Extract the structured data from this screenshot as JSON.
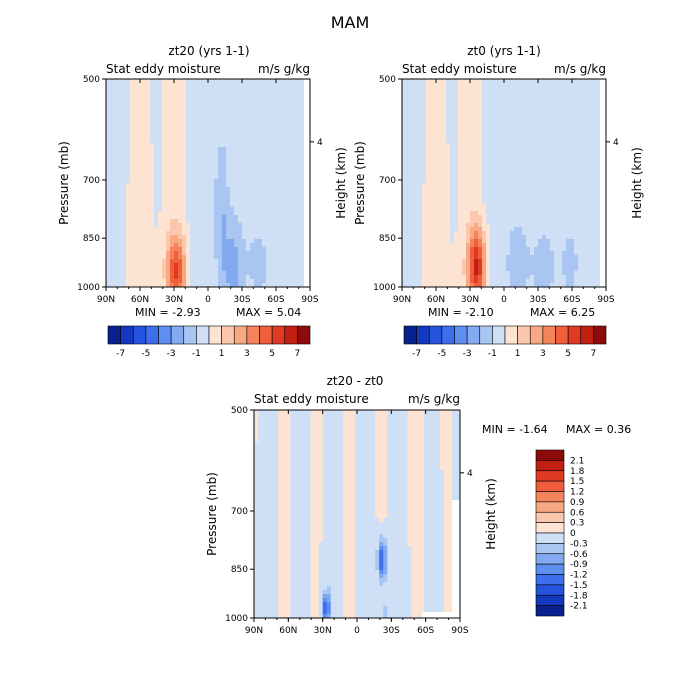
{
  "figure_title": "MAM",
  "palette": {
    "neg": [
      "#08218f",
      "#1438bf",
      "#2553de",
      "#3c6eee",
      "#5d8ef2",
      "#83aaf1",
      "#a9c5f1",
      "#cfe0f6"
    ],
    "pos": [
      "#fde4d2",
      "#fbc8ad",
      "#f8a882",
      "#f5835c",
      "#f05e3b",
      "#e03a22",
      "#c21f13",
      "#8e0b0b"
    ]
  },
  "chart_data": [
    {
      "type": "heatmap",
      "title": "zt20 (yrs 1-1)",
      "subtitle_left": "Stat eddy moisture",
      "subtitle_right": "m/s g/kg",
      "ylabel": "Pressure (mb)",
      "ylabel_right": "Height (km)",
      "x_ticks": [
        "90N",
        "60N",
        "30N",
        "0",
        "30S",
        "60S",
        "90S"
      ],
      "y_ticks": [
        "500",
        "700",
        "850",
        "1000"
      ],
      "y_right_ticks": [
        "4"
      ],
      "ylim": [
        1000,
        500
      ],
      "min_text": "MIN =   -2.93",
      "max_text": "MAX =    5.04",
      "levels": [
        -7,
        -6,
        -5,
        -4,
        -3,
        -2,
        -1,
        0,
        1,
        2,
        3,
        4,
        5,
        6,
        7
      ]
    },
    {
      "type": "heatmap",
      "title": "zt0 (yrs 1-1)",
      "subtitle_left": "Stat eddy moisture",
      "subtitle_right": "m/s g/kg",
      "ylabel": "Pressure (mb)",
      "ylabel_right": "Height (km)",
      "x_ticks": [
        "90N",
        "60N",
        "30N",
        "0",
        "30S",
        "60S",
        "90S"
      ],
      "y_ticks": [
        "500",
        "700",
        "850",
        "1000"
      ],
      "y_right_ticks": [
        "4"
      ],
      "ylim": [
        1000,
        500
      ],
      "min_text": "MIN =   -2.10",
      "max_text": "MAX =    6.25",
      "levels": [
        -7,
        -6,
        -5,
        -4,
        -3,
        -2,
        -1,
        0,
        1,
        2,
        3,
        4,
        5,
        6,
        7
      ]
    },
    {
      "type": "heatmap",
      "title": "zt20 - zt0",
      "subtitle_left": "Stat eddy moisture",
      "subtitle_right": "m/s g/kg",
      "ylabel": "Pressure (mb)",
      "ylabel_right": "Height (km)",
      "x_ticks": [
        "90N",
        "60N",
        "30N",
        "0",
        "30S",
        "60S",
        "90S"
      ],
      "y_ticks": [
        "500",
        "700",
        "850",
        "1000"
      ],
      "y_right_ticks": [
        "4"
      ],
      "ylim": [
        1000,
        500
      ],
      "min_text": "MIN =   -1.64",
      "max_text": "MAX =    0.36"
    }
  ],
  "colorbars": {
    "top": {
      "tick_labels": [
        "-7",
        "-5",
        "-3",
        "-1",
        "1",
        "3",
        "5",
        "7"
      ]
    },
    "diff": {
      "tick_labels": [
        "2.1",
        "1.8",
        "1.5",
        "1.2",
        "0.9",
        "0.6",
        "0.3",
        "0",
        "-0.3",
        "-0.6",
        "-0.9",
        "-1.2",
        "-1.5",
        "-1.8",
        "-2.1"
      ]
    }
  }
}
